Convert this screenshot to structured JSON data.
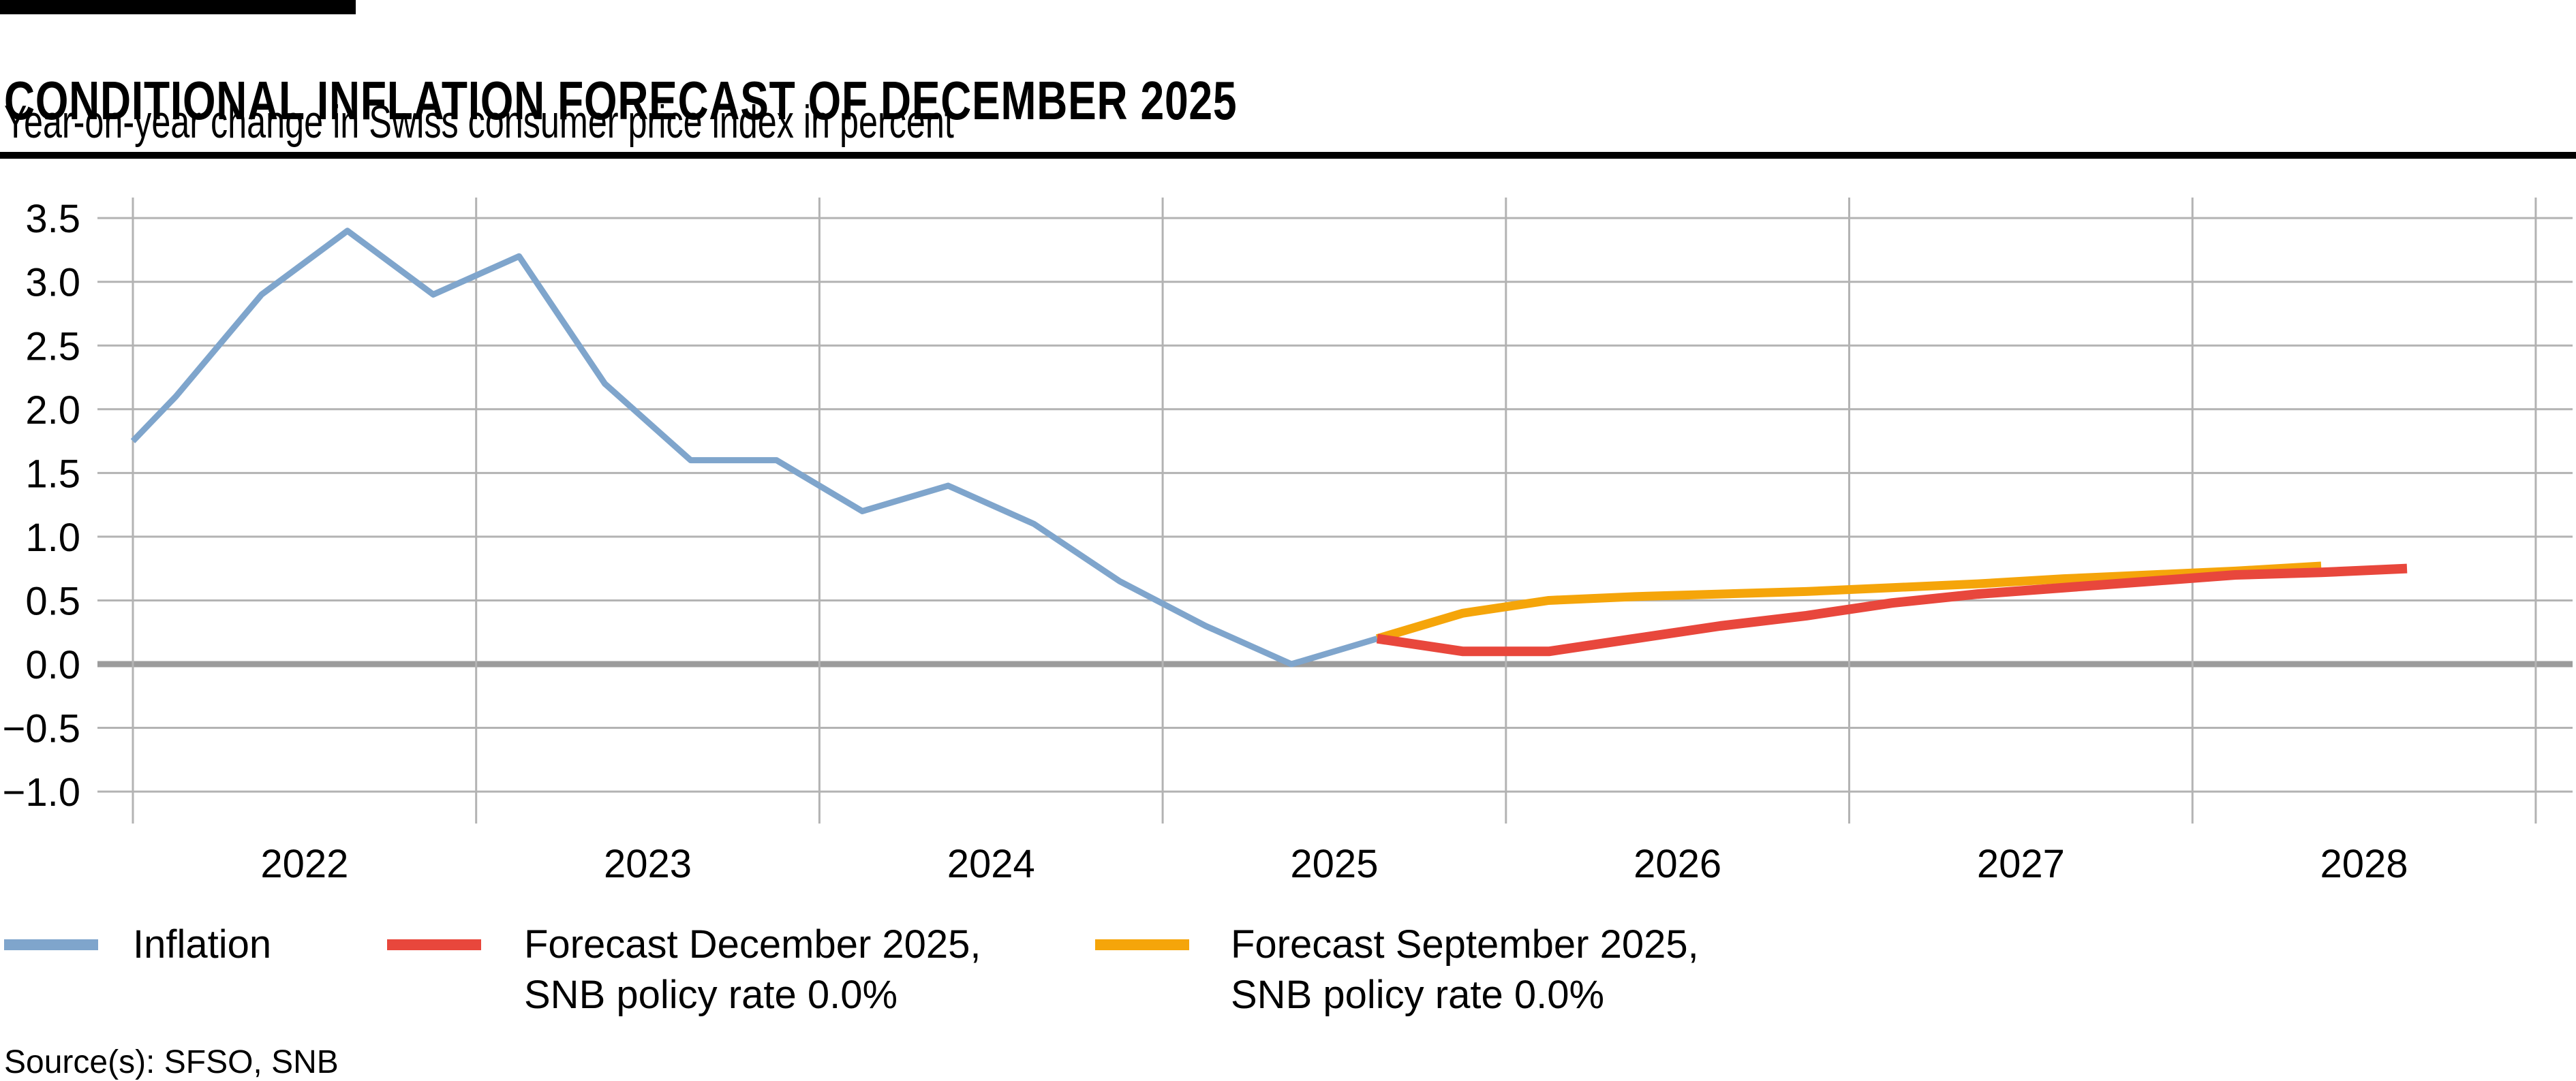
{
  "header": {
    "title": "CONDITIONAL INFLATION FORECAST OF DECEMBER 2025",
    "subtitle": "Year-on-year change in Swiss consumer price index in percent"
  },
  "source_line": "Source(s): SFSO, SNB",
  "colors": {
    "inflation": "#7FA5CC",
    "forecast_december": "#E8473C",
    "forecast_september": "#F5A50A",
    "gridline": "#B3B3B3",
    "zero_line": "#9C9C9C",
    "accent": "#000000"
  },
  "legend": [
    {
      "key": "inflation",
      "color": "#7FA5CC",
      "line1": "Inflation",
      "line2": ""
    },
    {
      "key": "forecast-december-2025",
      "color": "#E8473C",
      "line1": "Forecast December 2025,",
      "line2": "SNB policy rate 0.0%"
    },
    {
      "key": "forecast-september-2025",
      "color": "#F5A50A",
      "line1": "Forecast September 2025,",
      "line2": "SNB policy rate 0.0%"
    }
  ],
  "chart_data": {
    "type": "line",
    "title": "CONDITIONAL INFLATION FORECAST OF DECEMBER 2025",
    "subtitle": "Year-on-year change in Swiss consumer price index in percent",
    "xlabel": "",
    "ylabel": "Year-on-year change in Swiss consumer price index in percent",
    "grid": true,
    "legend_position": "bottom",
    "xlim": [
      2021.88,
      2029.12
    ],
    "ylim": [
      -1.25,
      3.75
    ],
    "x_gridline_years": [
      2022,
      2023,
      2024,
      2025,
      2026,
      2027,
      2028,
      2029
    ],
    "x_ticks": [
      {
        "label": "2022",
        "center": 2022.5
      },
      {
        "label": "2023",
        "center": 2023.5
      },
      {
        "label": "2024",
        "center": 2024.5
      },
      {
        "label": "2025",
        "center": 2025.5
      },
      {
        "label": "2026",
        "center": 2026.5
      },
      {
        "label": "2027",
        "center": 2027.5
      },
      {
        "label": "2028",
        "center": 2028.5
      }
    ],
    "y_ticks": [
      {
        "value": 3.5,
        "label": "3.5"
      },
      {
        "value": 3.0,
        "label": "3.0"
      },
      {
        "value": 2.5,
        "label": "2.5"
      },
      {
        "value": 2.0,
        "label": "2.0"
      },
      {
        "value": 1.5,
        "label": "1.5"
      },
      {
        "value": 1.0,
        "label": "1.0"
      },
      {
        "value": 0.5,
        "label": "0.5"
      },
      {
        "value": 0.0,
        "label": "0.0"
      },
      {
        "value": -0.5,
        "label": "−0.5"
      },
      {
        "value": -1.0,
        "label": "−1.0"
      }
    ],
    "series": [
      {
        "name": "Inflation",
        "key": "inflation",
        "color": "#7FA5CC",
        "width": 9,
        "note": "quarterly actual inflation, plotted at quarter midpoints; first point is the value where the line enters the plot at Jan 2022",
        "x": [
          2022.0,
          2022.125,
          2022.375,
          2022.625,
          2022.875,
          2023.125,
          2023.375,
          2023.625,
          2023.875,
          2024.125,
          2024.375,
          2024.625,
          2024.875,
          2025.125,
          2025.375,
          2025.625
        ],
        "y": [
          1.75,
          2.1,
          2.9,
          3.4,
          2.9,
          3.2,
          2.2,
          1.6,
          1.6,
          1.2,
          1.4,
          1.1,
          0.65,
          0.3,
          0.0,
          0.2
        ]
      },
      {
        "name": "Forecast December 2025, SNB policy rate 0.0%",
        "key": "forecast-december-2025",
        "color": "#E8473C",
        "width": 14,
        "x": [
          2025.625,
          2025.875,
          2026.125,
          2026.375,
          2026.625,
          2026.875,
          2027.125,
          2027.375,
          2027.625,
          2027.875,
          2028.125,
          2028.375,
          2028.625
        ],
        "y": [
          0.2,
          0.1,
          0.1,
          0.2,
          0.3,
          0.38,
          0.48,
          0.55,
          0.6,
          0.65,
          0.7,
          0.72,
          0.75
        ]
      },
      {
        "name": "Forecast September 2025, SNB policy rate 0.0%",
        "key": "forecast-september-2025",
        "color": "#F5A50A",
        "width": 13,
        "x": [
          2025.625,
          2025.875,
          2026.125,
          2026.375,
          2026.625,
          2026.875,
          2027.125,
          2027.375,
          2027.625,
          2027.875,
          2028.125,
          2028.375
        ],
        "y": [
          0.2,
          0.4,
          0.5,
          0.53,
          0.55,
          0.57,
          0.6,
          0.63,
          0.67,
          0.7,
          0.73,
          0.77
        ]
      }
    ]
  }
}
